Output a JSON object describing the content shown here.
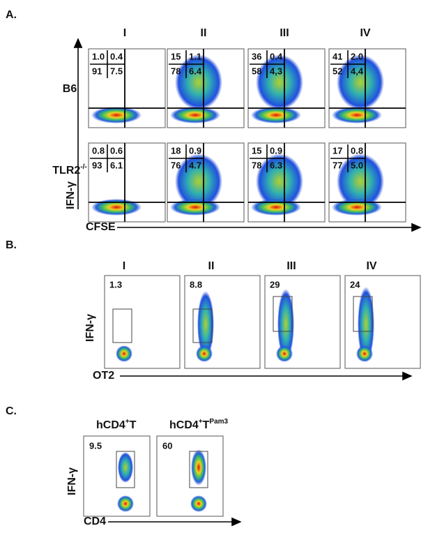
{
  "panel_a": {
    "label": "A.",
    "columns": [
      "I",
      "II",
      "III",
      "IV"
    ],
    "rows": [
      {
        "name": "B6",
        "quadrants": [
          [
            "1.0",
            "0.4",
            "91",
            "7.5"
          ],
          [
            "15",
            "1.1",
            "78",
            "6.4"
          ],
          [
            "36",
            "0.4",
            "58",
            "4,3"
          ],
          [
            "41",
            "2.0",
            "52",
            "4,4"
          ]
        ]
      },
      {
        "name": "TLR2",
        "name_sup": "-/-",
        "quadrants": [
          [
            "0.8",
            "0.6",
            "93",
            "6.1"
          ],
          [
            "18",
            "0.9",
            "76",
            "4.7"
          ],
          [
            "15",
            "0.9",
            "78",
            "6.3"
          ],
          [
            "17",
            "0.8",
            "77",
            "5.0"
          ]
        ]
      }
    ],
    "y_label": "IFN-γ",
    "x_label": "CFSE"
  },
  "panel_b": {
    "label": "B.",
    "columns": [
      "I",
      "II",
      "III",
      "IV"
    ],
    "values": [
      "1.3",
      "8.8",
      "29",
      "24"
    ],
    "y_label": "IFN-γ",
    "x_label": "OT2"
  },
  "panel_c": {
    "label": "C.",
    "samples": [
      {
        "name": "hCD4",
        "sup": "+",
        "suffix": "T"
      },
      {
        "name": "hCD4",
        "sup": "+",
        "suffix": "T",
        "suffix_sup": "Pam3"
      }
    ],
    "values": [
      "9.5",
      "60"
    ],
    "y_label": "IFN-γ",
    "x_label": "CD4"
  }
}
